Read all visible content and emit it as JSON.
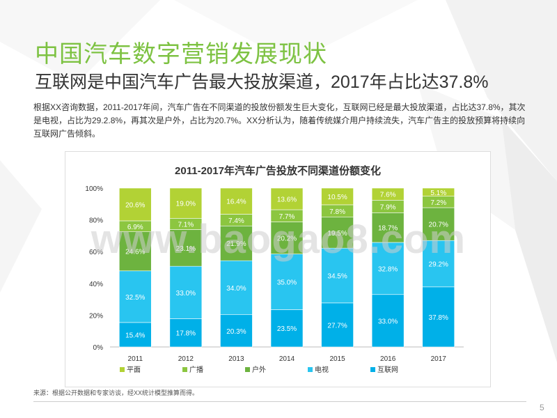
{
  "header": {
    "title": "中国汽车数字营销发展现状",
    "subtitle": "互联网是中国汽车广告最大投放渠道，2017年占比达37.8%"
  },
  "description": "根据XX咨询数据，2011-2017年间，汽车广告在不同渠道的投放份额发生巨大变化，互联网已经是最大投放渠道，占比达37.8%，其次是电视，占比为29.2.8%，再其次是户外，占比为20.7%。XX分析认为，随着传统媒介用户持续流失，汽车广告主的投放预算将持续向互联网广告倾斜。",
  "footnote": "来源：根据公开数据和专家访谈，经XX统计模型推算而得。",
  "page_number": "5",
  "watermark": "www.baogao8.com",
  "colors": {
    "title_green": "#7dc242",
    "internet": "#00b0e8",
    "tv": "#29c5f0",
    "outdoor": "#6db33f",
    "broadcast": "#8cc640",
    "print": "#b2d235"
  },
  "chart_data": {
    "type": "bar",
    "stacked": true,
    "title": "2011-2017年汽车广告投放不同渠道份额变化",
    "categories": [
      "2011",
      "2012",
      "2013",
      "2014",
      "2015",
      "2016",
      "2017"
    ],
    "y_ticks": [
      "0%",
      "20%",
      "40%",
      "60%",
      "80%",
      "100%"
    ],
    "ylim": [
      0,
      100
    ],
    "legend_position": "bottom",
    "series": [
      {
        "name": "互联网",
        "color": "#00b0e8",
        "values": [
          15.4,
          17.8,
          20.3,
          23.5,
          27.7,
          33.0,
          37.8
        ],
        "labels": [
          "15.4%",
          "17.8%",
          "20.3%",
          "23.5%",
          "27.7%",
          "33.0%",
          "37.8%"
        ]
      },
      {
        "name": "电视",
        "color": "#29c5f0",
        "values": [
          32.5,
          33.0,
          34.0,
          35.0,
          34.5,
          32.8,
          29.2
        ],
        "labels": [
          "32.5%",
          "33.0%",
          "34.0%",
          "35.0%",
          "34.5%",
          "32.8%",
          "29.2%"
        ]
      },
      {
        "name": "户外",
        "color": "#6db33f",
        "values": [
          24.6,
          23.1,
          21.9,
          20.2,
          19.5,
          18.7,
          20.7
        ],
        "labels": [
          "24.6%",
          "23.1%",
          "21.9%",
          "20.2%",
          "19.5%",
          "18.7%",
          "20.7%"
        ]
      },
      {
        "name": "广播",
        "color": "#8cc640",
        "values": [
          6.9,
          7.1,
          7.4,
          7.7,
          7.8,
          7.9,
          7.2
        ],
        "labels": [
          "6.9%",
          "7.1%",
          "7.4%",
          "7.7%",
          "7.8%",
          "7.9%",
          "7.2%"
        ]
      },
      {
        "name": "平面",
        "color": "#b2d235",
        "values": [
          20.6,
          19.0,
          16.4,
          13.6,
          10.5,
          7.6,
          5.1
        ],
        "labels": [
          "20.6%",
          "19.0%",
          "16.4%",
          "13.6%",
          "10.5%",
          "7.6%",
          "5.1%"
        ]
      }
    ],
    "legend_order": [
      "平面",
      "广播",
      "户外",
      "电视",
      "互联网"
    ]
  }
}
